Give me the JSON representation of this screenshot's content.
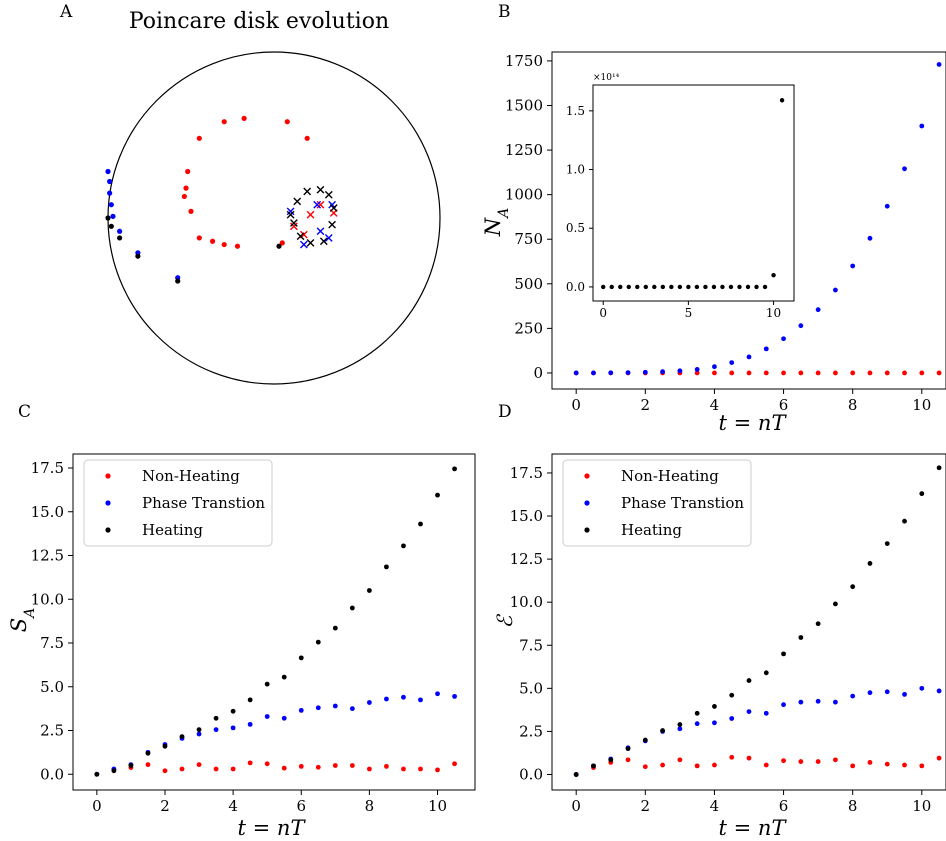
{
  "colors": {
    "non_heating": "#ff0000",
    "phase_transition": "#0000ff",
    "heating": "#000000"
  },
  "legend": {
    "non_heating": "Non-Heating",
    "phase_transition": "Phase Transtion",
    "heating": "Heating"
  },
  "chart_data": [
    {
      "id": "A",
      "panel_label": "A",
      "type": "scatter",
      "title": "Poincare disk evolution",
      "xlim": [
        -1,
        1
      ],
      "ylim": [
        -1,
        1
      ],
      "series": [
        {
          "key": "non_heating",
          "marker": "dot",
          "points": [
            [
              -0.45,
              0.48
            ],
            [
              -0.3,
              0.58
            ],
            [
              -0.18,
              0.6
            ],
            [
              0.08,
              0.58
            ],
            [
              0.2,
              0.48
            ],
            [
              -0.52,
              0.28
            ],
            [
              -0.53,
              0.18
            ],
            [
              -0.5,
              0.04
            ],
            [
              -0.54,
              0.13
            ],
            [
              -0.45,
              -0.12
            ],
            [
              -0.37,
              -0.14
            ],
            [
              -0.3,
              -0.16
            ],
            [
              -0.22,
              -0.17
            ],
            [
              0.05,
              -0.15
            ]
          ]
        },
        {
          "key": "non_heating",
          "marker": "x",
          "points": [
            [
              0.12,
              -0.05
            ],
            [
              0.18,
              -0.1
            ],
            [
              0.28,
              0.08
            ],
            [
              0.36,
              0.03
            ],
            [
              0.22,
              0.02
            ]
          ]
        },
        {
          "key": "phase_transition",
          "marker": "dot",
          "points": [
            [
              -1.0,
              0.28
            ],
            [
              -0.99,
              0.22
            ],
            [
              -0.99,
              0.15
            ],
            [
              -0.98,
              0.08
            ],
            [
              -0.97,
              0.01
            ],
            [
              -0.93,
              -0.08
            ],
            [
              -0.82,
              -0.21
            ],
            [
              -0.58,
              -0.36
            ]
          ]
        },
        {
          "key": "phase_transition",
          "marker": "x",
          "points": [
            [
              0.1,
              0.04
            ],
            [
              0.26,
              0.08
            ],
            [
              0.35,
              0.08
            ],
            [
              0.28,
              -0.08
            ],
            [
              0.18,
              -0.16
            ],
            [
              0.33,
              -0.12
            ]
          ]
        },
        {
          "key": "heating",
          "marker": "dot",
          "points": [
            [
              -1.0,
              0.0
            ],
            [
              -0.98,
              -0.05
            ],
            [
              -0.93,
              -0.12
            ],
            [
              -0.82,
              -0.23
            ],
            [
              -0.58,
              -0.38
            ],
            [
              0.03,
              -0.17
            ]
          ]
        },
        {
          "key": "heating",
          "marker": "x",
          "points": [
            [
              0.1,
              0.02
            ],
            [
              0.14,
              0.1
            ],
            [
              0.2,
              0.16
            ],
            [
              0.28,
              0.17
            ],
            [
              0.33,
              0.14
            ],
            [
              0.36,
              0.06
            ],
            [
              0.35,
              -0.04
            ],
            [
              0.3,
              -0.14
            ],
            [
              0.22,
              -0.15
            ],
            [
              0.16,
              -0.11
            ],
            [
              0.12,
              -0.03
            ]
          ]
        }
      ]
    },
    {
      "id": "B",
      "panel_label": "B",
      "type": "scatter",
      "xlabel": "t = nT",
      "ylabel": "N_A",
      "xlim": [
        -0.7,
        10.7
      ],
      "ylim": [
        -90,
        1800
      ],
      "xticks": [
        "0",
        "2",
        "4",
        "6",
        "8",
        "10"
      ],
      "yticks": [
        "0",
        "250",
        "500",
        "750",
        "1000",
        "1250",
        "1500",
        "1750"
      ],
      "x": [
        0,
        0.5,
        1,
        1.5,
        2,
        2.5,
        3,
        3.5,
        4,
        4.5,
        5,
        5.5,
        6,
        6.5,
        7,
        7.5,
        8,
        8.5,
        9,
        9.5,
        10,
        10.5
      ],
      "series": [
        {
          "key": "non_heating",
          "values": [
            0,
            0,
            0,
            0,
            0,
            0,
            0,
            0,
            0,
            0,
            0,
            0,
            0,
            0,
            0,
            0,
            0,
            0,
            0,
            0,
            0,
            0
          ]
        },
        {
          "key": "phase_transition",
          "values": [
            0,
            0,
            1,
            2,
            4,
            7,
            12,
            20,
            35,
            58,
            90,
            135,
            192,
            265,
            355,
            465,
            600,
            755,
            935,
            1145,
            1385,
            1730
          ]
        }
      ],
      "inset": {
        "type": "scatter",
        "multiplier": "×10¹⁴",
        "xlim": [
          -0.6,
          11.2
        ],
        "ylim": [
          -0.12,
          1.72
        ],
        "xticks": [
          "0",
          "5",
          "10"
        ],
        "yticks": [
          "0.0",
          "0.5",
          "1.0",
          "1.5"
        ],
        "x": [
          0,
          0.5,
          1,
          1.5,
          2,
          2.5,
          3,
          3.5,
          4,
          4.5,
          5,
          5.5,
          6,
          6.5,
          7,
          7.5,
          8,
          8.5,
          9,
          9.5,
          10,
          10.5
        ],
        "series": [
          {
            "key": "heating",
            "values": [
              0,
              0,
              0,
              0,
              0,
              0,
              0,
              0,
              0,
              0,
              0,
              0,
              0,
              0,
              0,
              0,
              0,
              0,
              0,
              0,
              0.1,
              1.59
            ]
          }
        ]
      }
    },
    {
      "id": "C",
      "panel_label": "C",
      "type": "scatter",
      "xlabel": "t = nT",
      "ylabel": "S_A",
      "xlim": [
        -0.7,
        11.1
      ],
      "ylim": [
        -0.9,
        18.3
      ],
      "xticks": [
        "0",
        "2",
        "4",
        "6",
        "8",
        "10"
      ],
      "yticks": [
        "0.0",
        "2.5",
        "5.0",
        "7.5",
        "10.0",
        "12.5",
        "15.0",
        "17.5"
      ],
      "legend_position": "upper-left",
      "x": [
        0,
        0.5,
        1,
        1.5,
        2,
        2.5,
        3,
        3.5,
        4,
        4.5,
        5,
        5.5,
        6,
        6.5,
        7,
        7.5,
        8,
        8.5,
        9,
        9.5,
        10,
        10.5
      ],
      "series": [
        {
          "key": "non_heating",
          "values": [
            0,
            0.25,
            0.38,
            0.55,
            0.2,
            0.3,
            0.55,
            0.3,
            0.3,
            0.65,
            0.6,
            0.35,
            0.45,
            0.4,
            0.5,
            0.5,
            0.3,
            0.45,
            0.3,
            0.3,
            0.25,
            0.6
          ]
        },
        {
          "key": "phase_transition",
          "values": [
            0,
            0.3,
            0.55,
            1.25,
            1.7,
            2.05,
            2.3,
            2.55,
            2.65,
            2.85,
            3.3,
            3.2,
            3.65,
            3.8,
            3.9,
            3.75,
            4.1,
            4.3,
            4.4,
            4.25,
            4.6,
            4.45
          ]
        },
        {
          "key": "heating",
          "values": [
            0,
            0.2,
            0.5,
            1.2,
            1.6,
            2.15,
            2.55,
            3.2,
            3.6,
            4.25,
            5.15,
            5.55,
            6.65,
            7.55,
            8.35,
            9.5,
            10.5,
            11.85,
            13.05,
            14.3,
            15.95,
            17.45
          ]
        }
      ]
    },
    {
      "id": "D",
      "panel_label": "D",
      "type": "scatter",
      "xlabel": "t = nT",
      "ylabel": "ℰ",
      "xlim": [
        -0.7,
        10.7
      ],
      "ylim": [
        -0.9,
        18.6
      ],
      "xticks": [
        "0",
        "2",
        "4",
        "6",
        "8",
        "10"
      ],
      "yticks": [
        "0.0",
        "2.5",
        "5.0",
        "7.5",
        "10.0",
        "12.5",
        "15.0",
        "17.5"
      ],
      "legend_position": "upper-left",
      "x": [
        0,
        0.5,
        1,
        1.5,
        2,
        2.5,
        3,
        3.5,
        4,
        4.5,
        5,
        5.5,
        6,
        6.5,
        7,
        7.5,
        8,
        8.5,
        9,
        9.5,
        10,
        10.5
      ],
      "series": [
        {
          "key": "non_heating",
          "values": [
            0,
            0.4,
            0.7,
            0.85,
            0.45,
            0.55,
            0.85,
            0.5,
            0.55,
            1.0,
            0.95,
            0.55,
            0.8,
            0.75,
            0.75,
            0.85,
            0.5,
            0.7,
            0.6,
            0.55,
            0.5,
            0.95
          ]
        },
        {
          "key": "phase_transition",
          "values": [
            0,
            0.5,
            0.9,
            1.55,
            1.95,
            2.5,
            2.65,
            2.95,
            3.0,
            3.25,
            3.65,
            3.55,
            4.05,
            4.2,
            4.25,
            4.2,
            4.55,
            4.75,
            4.8,
            4.65,
            5.0,
            4.85
          ]
        },
        {
          "key": "heating",
          "values": [
            0,
            0.5,
            0.85,
            1.5,
            2.0,
            2.55,
            2.9,
            3.55,
            3.95,
            4.6,
            5.45,
            5.9,
            7.0,
            7.95,
            8.75,
            9.9,
            10.9,
            12.25,
            13.4,
            14.7,
            16.3,
            17.8
          ]
        }
      ]
    }
  ]
}
